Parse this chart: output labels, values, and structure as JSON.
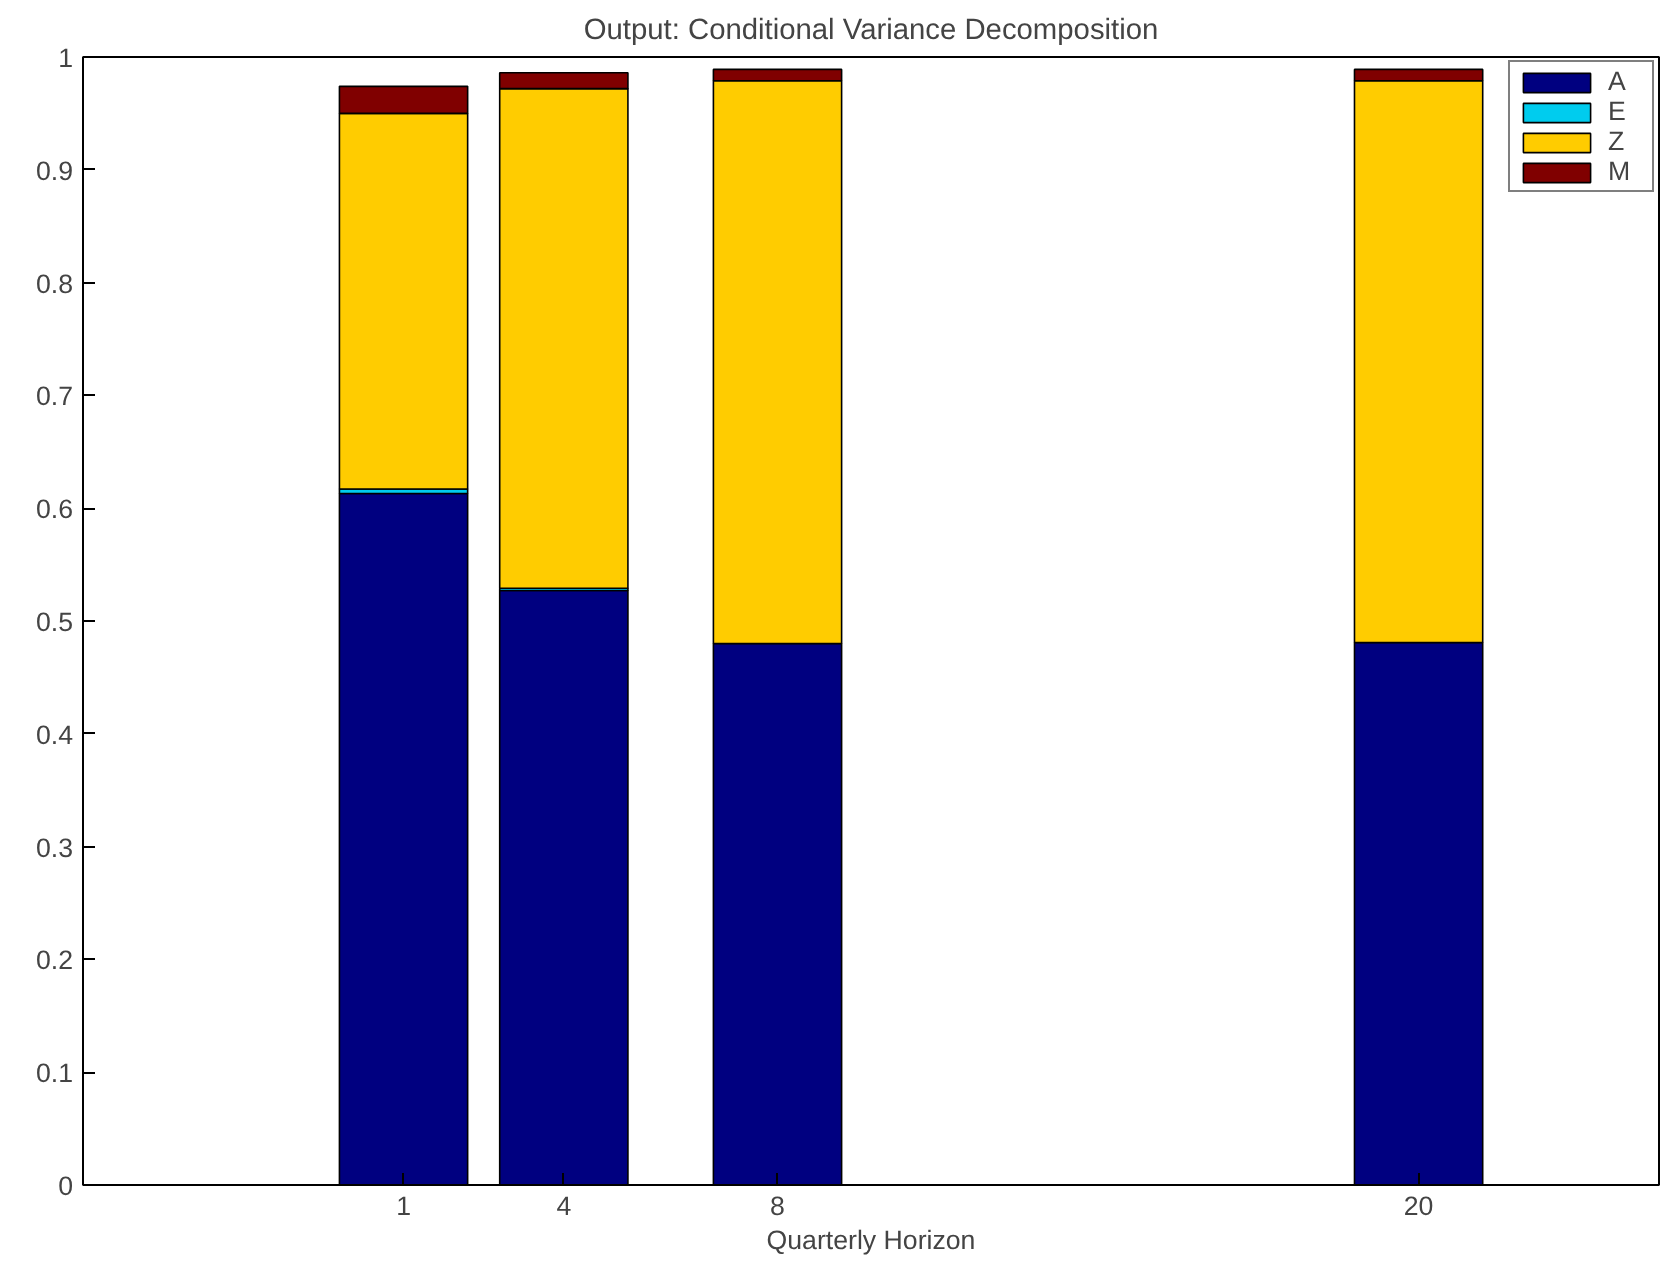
{
  "chart_data": {
    "type": "bar",
    "stacked": true,
    "title": "Output: Conditional Variance Decomposition",
    "xlabel": "Quarterly Horizon",
    "x": [
      1,
      4,
      8,
      20
    ],
    "xlim": [
      -5,
      24.5
    ],
    "xticks": [
      1,
      4,
      8,
      20
    ],
    "ylim": [
      0,
      1
    ],
    "yticks": [
      0,
      0.1,
      0.2,
      0.3,
      0.4,
      0.5,
      0.6,
      0.7,
      0.8,
      0.9,
      1
    ],
    "series": [
      {
        "name": "A",
        "color": "#000080",
        "values": [
          0.613,
          0.527,
          0.48,
          0.481
        ]
      },
      {
        "name": "E",
        "color": "#00ccee",
        "values": [
          0.004,
          0.002,
          null,
          null
        ]
      },
      {
        "name": "Z",
        "color": "#ffcc00",
        "values": [
          0.333,
          0.443,
          0.499,
          0.498
        ]
      },
      {
        "name": "M",
        "color": "#800000",
        "values": [
          0.024,
          0.014,
          0.01,
          0.01
        ]
      }
    ],
    "legend": "top right",
    "grid": false
  }
}
